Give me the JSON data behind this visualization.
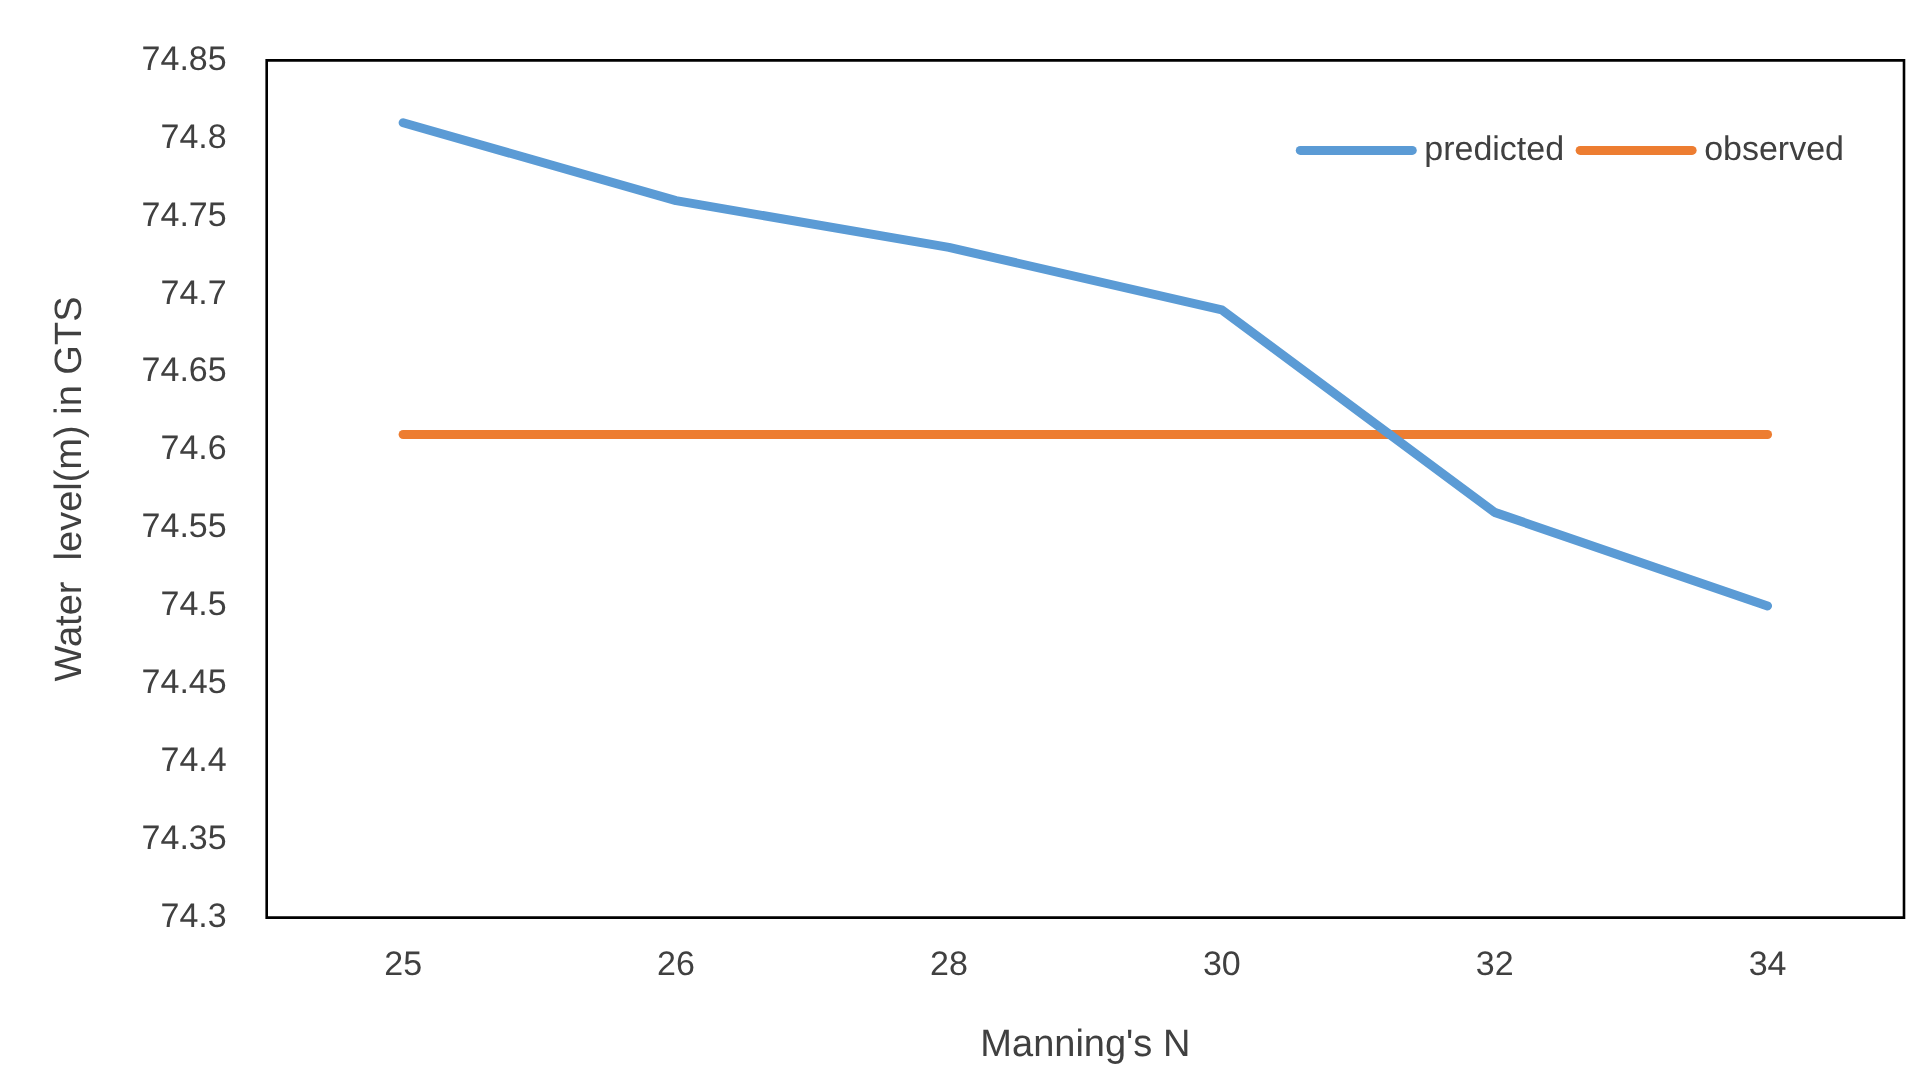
{
  "chart_data": {
    "type": "line",
    "xlabel": "Manning's N",
    "ylabel": "Water  level(m) in GTS",
    "categories": [
      "25",
      "26",
      "28",
      "30",
      "32",
      "34"
    ],
    "series": [
      {
        "name": "predicted",
        "color": "#5b9bd5",
        "values": [
          74.81,
          74.76,
          74.73,
          74.69,
          74.56,
          74.5
        ]
      },
      {
        "name": "observed",
        "color": "#ed7d31",
        "values": [
          74.61,
          74.61,
          74.61,
          74.61,
          74.61,
          74.61
        ]
      }
    ],
    "ylim": [
      74.3,
      74.85
    ],
    "yticks": [
      74.3,
      74.35,
      74.4,
      74.45,
      74.5,
      74.55,
      74.6,
      74.65,
      74.7,
      74.75,
      74.8,
      74.85
    ],
    "grid": false,
    "legend": "top right",
    "marker": "none",
    "line_style": "solid"
  }
}
